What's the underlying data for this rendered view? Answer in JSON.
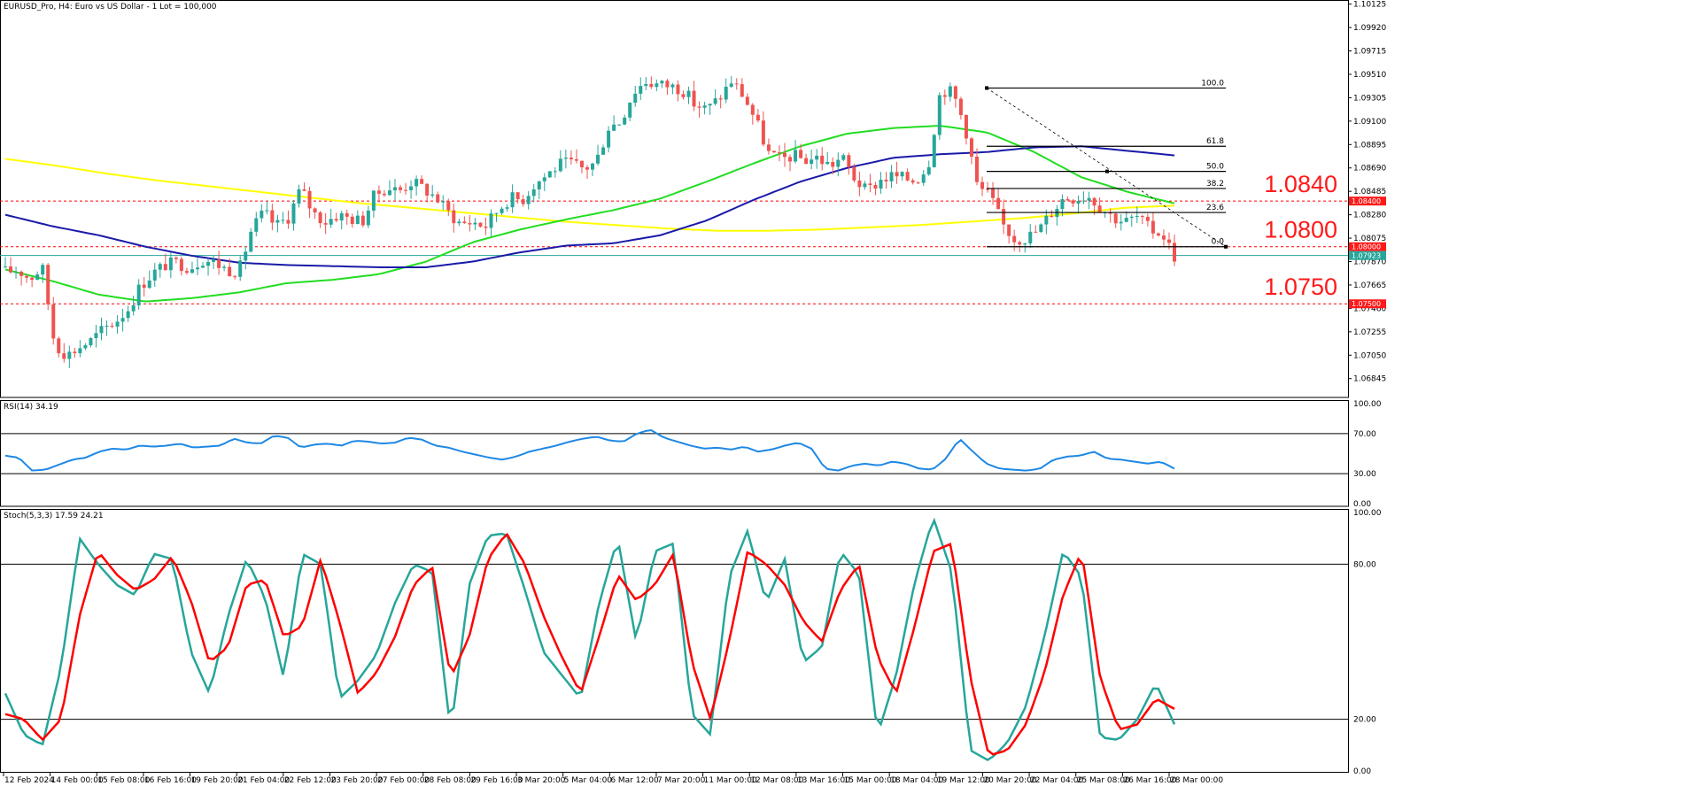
{
  "chart_data": [
    {
      "type": "candlestick",
      "title": "EURUSD_Pro, H4:  Euro vs US Dollar - 1 Lot = 100,000",
      "y_ticks": [
        "1.10125",
        "1.09920",
        "1.09715",
        "1.09510",
        "1.09305",
        "1.09100",
        "1.08895",
        "1.08690",
        "1.08485",
        "1.08280",
        "1.08075",
        "1.07870",
        "1.07665",
        "1.07460",
        "1.07255",
        "1.07050",
        "1.06845"
      ],
      "ylim": [
        1.0668,
        1.1013
      ],
      "x_ticks": [
        "12 Feb 2024",
        "14 Feb 00:00",
        "15 Feb 08:00",
        "16 Feb 16:00",
        "19 Feb 20:00",
        "21 Feb 04:00",
        "22 Feb 12:00",
        "23 Feb 20:00",
        "27 Feb 00:00",
        "28 Feb 08:00",
        "29 Feb 16:00",
        "3 Mar 20:00",
        "5 Mar 04:00",
        "6 Mar 12:00",
        "7 Mar 20:00",
        "11 Mar 00:00",
        "12 Mar 08:00",
        "13 Mar 16:00",
        "15 Mar 00:00",
        "18 Mar 04:00",
        "19 Mar 12:00",
        "20 Mar 20:00",
        "22 Mar 04:00",
        "25 Mar 08:00",
        "26 Mar 16:00",
        "28 Mar 00:00"
      ],
      "bull_color": "#26a69a",
      "bear_color": "#ef5350",
      "close_path": [
        1.0778,
        1.078,
        1.0772,
        1.0782,
        1.0715,
        1.0705,
        1.0712,
        1.0718,
        1.0728,
        1.0735,
        1.0746,
        1.0766,
        1.0777,
        1.0784,
        1.0786,
        1.0782,
        1.0789,
        1.0786,
        1.078,
        1.0779,
        1.0815,
        1.083,
        1.0818,
        1.0826,
        1.0851,
        1.083,
        1.0822,
        1.0828,
        1.0825,
        1.0822,
        1.0845,
        1.0852,
        1.0849,
        1.0857,
        1.0851,
        1.0843,
        1.083,
        1.082,
        1.0822,
        1.0818,
        1.0832,
        1.0843,
        1.0841,
        1.0855,
        1.0863,
        1.0872,
        1.0873,
        1.0868,
        1.0874,
        1.0905,
        1.091,
        1.0935,
        1.0945,
        1.0942,
        1.0941,
        1.0938,
        1.0925,
        1.092,
        1.093,
        1.0945,
        1.0932,
        1.091,
        1.0882,
        1.0876,
        1.088,
        1.0876,
        1.0878,
        1.0871,
        1.0878,
        1.086,
        1.0848,
        1.0858,
        1.0862,
        1.086,
        1.0858,
        1.0872,
        1.0938,
        1.0935,
        1.0905,
        1.0852,
        1.0845,
        1.082,
        1.0807,
        1.0808,
        1.0815,
        1.083,
        1.0843,
        1.0843,
        1.0845,
        1.0835,
        1.0826,
        1.0822,
        1.0826,
        1.0815,
        1.0812,
        1.0792
      ],
      "series": [
        {
          "name": "",
          "color": "#ffff00",
          "path": [
            1.0877,
            1.0871,
            1.0864,
            1.0858,
            1.0853,
            1.0848,
            1.0843,
            1.0838,
            1.0834,
            1.083,
            1.0826,
            1.0822,
            1.0819,
            1.0816,
            1.0814,
            1.0814,
            1.0815,
            1.0817,
            1.0819,
            1.0822,
            1.0825,
            1.0829,
            1.0834,
            1.0836
          ]
        },
        {
          "name": "",
          "color": "#22dd22",
          "path": [
            1.078,
            1.077,
            1.0758,
            1.0752,
            1.0755,
            1.076,
            1.0768,
            1.0771,
            1.0776,
            1.0787,
            1.0804,
            1.0815,
            1.0824,
            1.0832,
            1.0842,
            1.0857,
            1.0873,
            1.0888,
            1.0899,
            1.0904,
            1.0906,
            1.09,
            1.0883,
            1.0861,
            1.0848,
            1.0838
          ]
        },
        {
          "name": "",
          "color": "#1a1aa8",
          "path": [
            1.0828,
            1.0818,
            1.081,
            1.08,
            1.0792,
            1.0786,
            1.0784,
            1.0783,
            1.0782,
            1.0782,
            1.0787,
            1.0795,
            1.0801,
            1.0803,
            1.081,
            1.0823,
            1.0841,
            1.0857,
            1.0869,
            1.0878,
            1.0881,
            1.0883,
            1.0887,
            1.0888,
            1.0884,
            1.088
          ]
        }
      ],
      "fib_levels": [
        {
          "label": "100.0",
          "value": 1.0939
        },
        {
          "label": "61.8",
          "value": 1.0888
        },
        {
          "label": "50.0",
          "value": 1.0866
        },
        {
          "label": "38.2",
          "value": 1.0851
        },
        {
          "label": "23.6",
          "value": 1.083
        },
        {
          "label": "0.0",
          "value": 1.08
        }
      ],
      "levels": [
        {
          "label": "1.0840",
          "value": 1.084,
          "tag": "1.08400"
        },
        {
          "label": "1.0800",
          "value": 1.08,
          "tag": "1.08000"
        },
        {
          "label": "1.0750",
          "value": 1.075,
          "tag": "1.07500"
        }
      ],
      "current_price": {
        "value": 1.07923,
        "tag": "1.07923"
      }
    },
    {
      "type": "line",
      "title": "RSI(14) 34.19",
      "ylim": [
        0,
        100
      ],
      "y_ticks": [
        "100.00",
        "70.00",
        "30.00",
        "0.00"
      ],
      "levels": [
        70,
        30
      ],
      "series": [
        {
          "name": "",
          "color": "#1e88e5",
          "values": [
            48,
            46,
            33,
            34,
            39,
            44,
            46,
            52,
            55,
            54,
            58,
            57,
            58,
            60,
            56,
            57,
            58,
            65,
            61,
            60,
            68,
            66,
            56,
            59,
            60,
            58,
            63,
            62,
            60,
            61,
            66,
            64,
            58,
            56,
            52,
            49,
            46,
            44,
            47,
            52,
            55,
            58,
            62,
            65,
            67,
            63,
            62,
            70,
            74,
            66,
            62,
            58,
            55,
            56,
            54,
            57,
            52,
            54,
            58,
            61,
            55,
            35,
            33,
            38,
            40,
            38,
            42,
            40,
            35,
            34,
            45,
            65,
            52,
            40,
            35,
            34,
            33,
            35,
            44,
            47,
            48,
            52,
            45,
            44,
            42,
            40,
            42,
            35
          ]
        }
      ]
    },
    {
      "type": "line",
      "title": "Stoch(5,3,3) 17.59 24.21",
      "ylim": [
        0,
        100
      ],
      "y_ticks": [
        "100.00",
        "80.00",
        "20.00",
        "0.00"
      ],
      "levels": [
        80,
        20
      ],
      "series": [
        {
          "name": "",
          "color": "#26a69a",
          "values": [
            30,
            14,
            10,
            40,
            90,
            80,
            72,
            68,
            84,
            82,
            46,
            30,
            60,
            82,
            67,
            36,
            84,
            80,
            28,
            35,
            45,
            65,
            80,
            77,
            15,
            72,
            91,
            92,
            70,
            46,
            37,
            28,
            65,
            90,
            50,
            85,
            88,
            22,
            14,
            75,
            93,
            65,
            82,
            42,
            48,
            85,
            76,
            14,
            37,
            73,
            98,
            77,
            8,
            4,
            11,
            25,
            52,
            85,
            75,
            13,
            12,
            20,
            34,
            18
          ]
        },
        {
          "name": "",
          "color": "#ff0000",
          "values": [
            22,
            20,
            12,
            20,
            60,
            85,
            76,
            70,
            74,
            83,
            66,
            42,
            48,
            72,
            74,
            52,
            56,
            82,
            58,
            30,
            38,
            52,
            72,
            79,
            36,
            52,
            82,
            92,
            80,
            60,
            44,
            30,
            52,
            76,
            66,
            72,
            84,
            42,
            20,
            50,
            85,
            80,
            72,
            58,
            50,
            70,
            80,
            44,
            30,
            56,
            85,
            88,
            36,
            6,
            8,
            18,
            38,
            68,
            85,
            36,
            16,
            18,
            28,
            24
          ]
        }
      ]
    }
  ]
}
